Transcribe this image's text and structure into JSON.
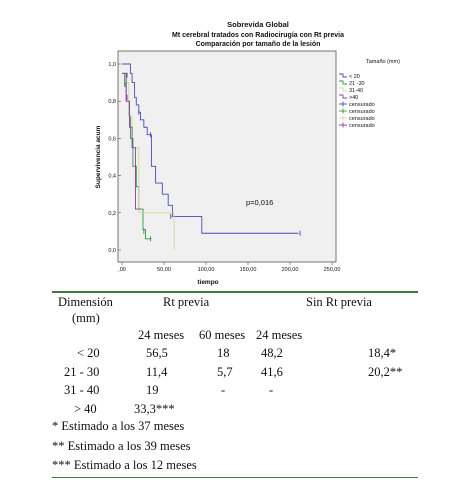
{
  "chart_data": {
    "type": "line",
    "title": "Sobrevida Global",
    "subtitle": "Mt cerebral tratados con Radiocirugía con Rt previa",
    "subtitle2": "Comparación por tamaño de la lesión",
    "xlabel": "tiempo",
    "ylabel": "Supervivencia acum",
    "xlim": [
      0,
      250
    ],
    "ylim": [
      0,
      1
    ],
    "x_ticks": [
      ",00",
      "50,00",
      "100,00",
      "150,00",
      "200,00",
      "250,00"
    ],
    "y_ticks": [
      "0,0",
      "0,2",
      "0,4",
      "0,6",
      "0,8",
      "1,0"
    ],
    "legend_title": "Tamaño (mm)",
    "legend_placement": "right",
    "annotation": "p=0,016",
    "series": [
      {
        "name": "< 20",
        "color": "#4a4ab8",
        "steps": [
          [
            0,
            1.0
          ],
          [
            10,
            0.95
          ],
          [
            12,
            0.9
          ],
          [
            15,
            0.82
          ],
          [
            17,
            0.78
          ],
          [
            20,
            0.74
          ],
          [
            22,
            0.7
          ],
          [
            26,
            0.66
          ],
          [
            30,
            0.62
          ],
          [
            35,
            0.45
          ],
          [
            40,
            0.36
          ],
          [
            48,
            0.3
          ],
          [
            55,
            0.24
          ],
          [
            60,
            0.18
          ],
          [
            95,
            0.09
          ],
          [
            210,
            0.09
          ]
        ],
        "censored": [
          [
            6,
            0.94
          ],
          [
            20,
            0.74
          ],
          [
            34,
            0.62
          ],
          [
            58,
            0.18
          ],
          [
            212,
            0.09
          ]
        ]
      },
      {
        "name": "21 -30",
        "color": "#2e9a3e",
        "steps": [
          [
            0,
            0.95
          ],
          [
            3,
            0.88
          ],
          [
            5,
            0.8
          ],
          [
            8,
            0.72
          ],
          [
            10,
            0.6
          ],
          [
            13,
            0.45
          ],
          [
            17,
            0.34
          ],
          [
            20,
            0.22
          ],
          [
            25,
            0.11
          ],
          [
            28,
            0.06
          ],
          [
            35,
            0.06
          ]
        ],
        "censored": [
          [
            4,
            0.9
          ],
          [
            26,
            0.1
          ],
          [
            34,
            0.06
          ]
        ]
      },
      {
        "name": "31-40",
        "color": "#d8d4a0",
        "steps": [
          [
            0,
            0.95
          ],
          [
            4,
            0.9
          ],
          [
            8,
            0.72
          ],
          [
            12,
            0.55
          ],
          [
            20,
            0.2
          ],
          [
            62,
            0.0
          ]
        ],
        "censored": [
          [
            9,
            0.7
          ]
        ]
      },
      {
        "name": ">40",
        "color": "#8a3aa8",
        "steps": [
          [
            0,
            0.95
          ],
          [
            5,
            0.8
          ],
          [
            9,
            0.66
          ],
          [
            12,
            0.55
          ],
          [
            16,
            0.22
          ],
          [
            22,
            0.22
          ]
        ],
        "censored": [
          [
            6,
            0.82
          ]
        ]
      }
    ],
    "legend_items": [
      "< 20",
      "21 -30",
      "31-40",
      ">40",
      "censurado",
      "censurado",
      "censurado",
      "censurado"
    ]
  },
  "table": {
    "header": {
      "dimension": "Dimensión",
      "dimension_unit": "(mm)",
      "group_rt": "Rt previa",
      "group_no_rt": "Sin Rt previa"
    },
    "subheaders": [
      "24 meses",
      "60 meses",
      "24 meses"
    ],
    "rows": [
      {
        "label": "< 20",
        "rt24": "56,5",
        "rt60": "18",
        "nort24": "48,2",
        "nort60": "18,4*"
      },
      {
        "label": "21 - 30",
        "rt24": "11,4",
        "rt60": "5,7",
        "nort24": "41,6",
        "nort60": "20,2**"
      },
      {
        "label": "31 - 40",
        "rt24": "19",
        "rt60": "-",
        "nort24": "-",
        "nort60": ""
      },
      {
        "label": "> 40",
        "rt24": "33,3***",
        "rt60": "",
        "nort24": "",
        "nort60": ""
      }
    ],
    "notes": [
      "* Estimado a los 37 meses",
      "** Estimado a los 39 meses",
      "*** Estimado a los 12 meses"
    ]
  }
}
